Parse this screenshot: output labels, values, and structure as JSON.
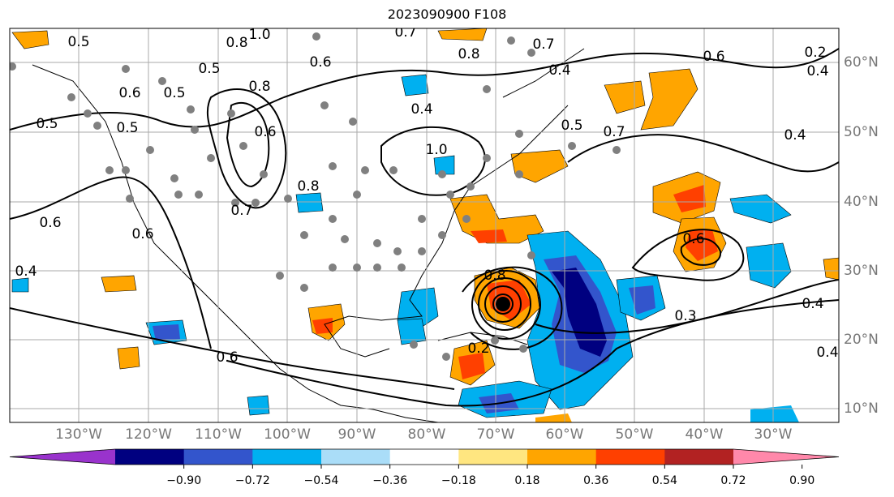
{
  "title": "2023090900 F108",
  "map": {
    "lon_labels": [
      "130°W",
      "120°W",
      "110°W",
      "100°W",
      "90°W",
      "80°W",
      "70°W",
      "60°W",
      "50°W",
      "40°W",
      "30°W"
    ],
    "lat_labels": [
      "60°N",
      "50°N",
      "40°N",
      "30°N",
      "20°N",
      "10°N"
    ],
    "contour_labels": [
      "1.0",
      "0.8",
      "0.5",
      "0.7",
      "0.8",
      "0.7",
      "0.5",
      "0.6",
      "0.4",
      "0.6",
      "0.5",
      "0.6",
      "0.5",
      "0.8",
      "0.4",
      "0.5",
      "0.6",
      "1.0",
      "0.7",
      "0.5",
      "0.7",
      "0.8",
      "0.6",
      "0.6",
      "0.4",
      "0.6",
      "0.8",
      "0.4",
      "0.6",
      "0.2",
      "0.4",
      "0.3",
      "0.4",
      "0.2",
      "0.4"
    ],
    "point_colors": {
      "ocean_land": "#ffffff",
      "grid": "#aaaaaa",
      "contour": "#000000",
      "dots": "#808080",
      "center": "#000000"
    }
  },
  "colorbar": {
    "ticks": [
      "−0.90",
      "−0.72",
      "−0.54",
      "−0.36",
      "−0.18",
      "0.18",
      "0.36",
      "0.54",
      "0.72",
      "0.90"
    ],
    "colors": [
      "#9933cc",
      "#000080",
      "#3355cc",
      "#00b0f0",
      "#aaddf8",
      "#ffffff",
      "#ffe680",
      "#ffa500",
      "#ff4000",
      "#b22222",
      "#ff88aa"
    ]
  }
}
